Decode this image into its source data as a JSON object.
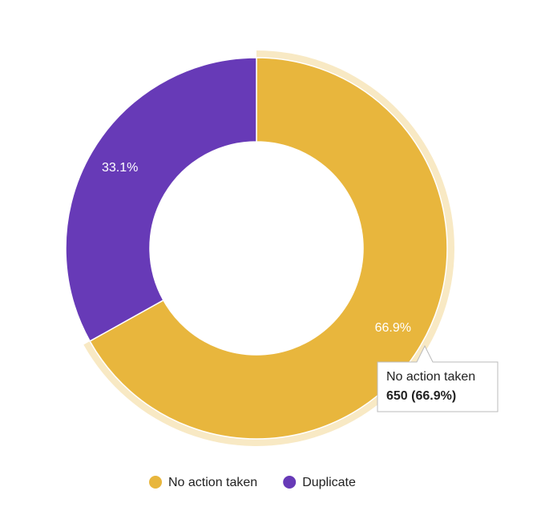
{
  "chart_data": {
    "type": "donut",
    "categories": [
      "No action taken",
      "Duplicate"
    ],
    "values": [
      66.9,
      33.1
    ],
    "value_labels": [
      "66.9%",
      "33.1%"
    ],
    "colors": [
      "#e8b63d",
      "#673ab7"
    ],
    "legend": "bottom",
    "tooltip_label": "650 (66.9%)"
  }
}
